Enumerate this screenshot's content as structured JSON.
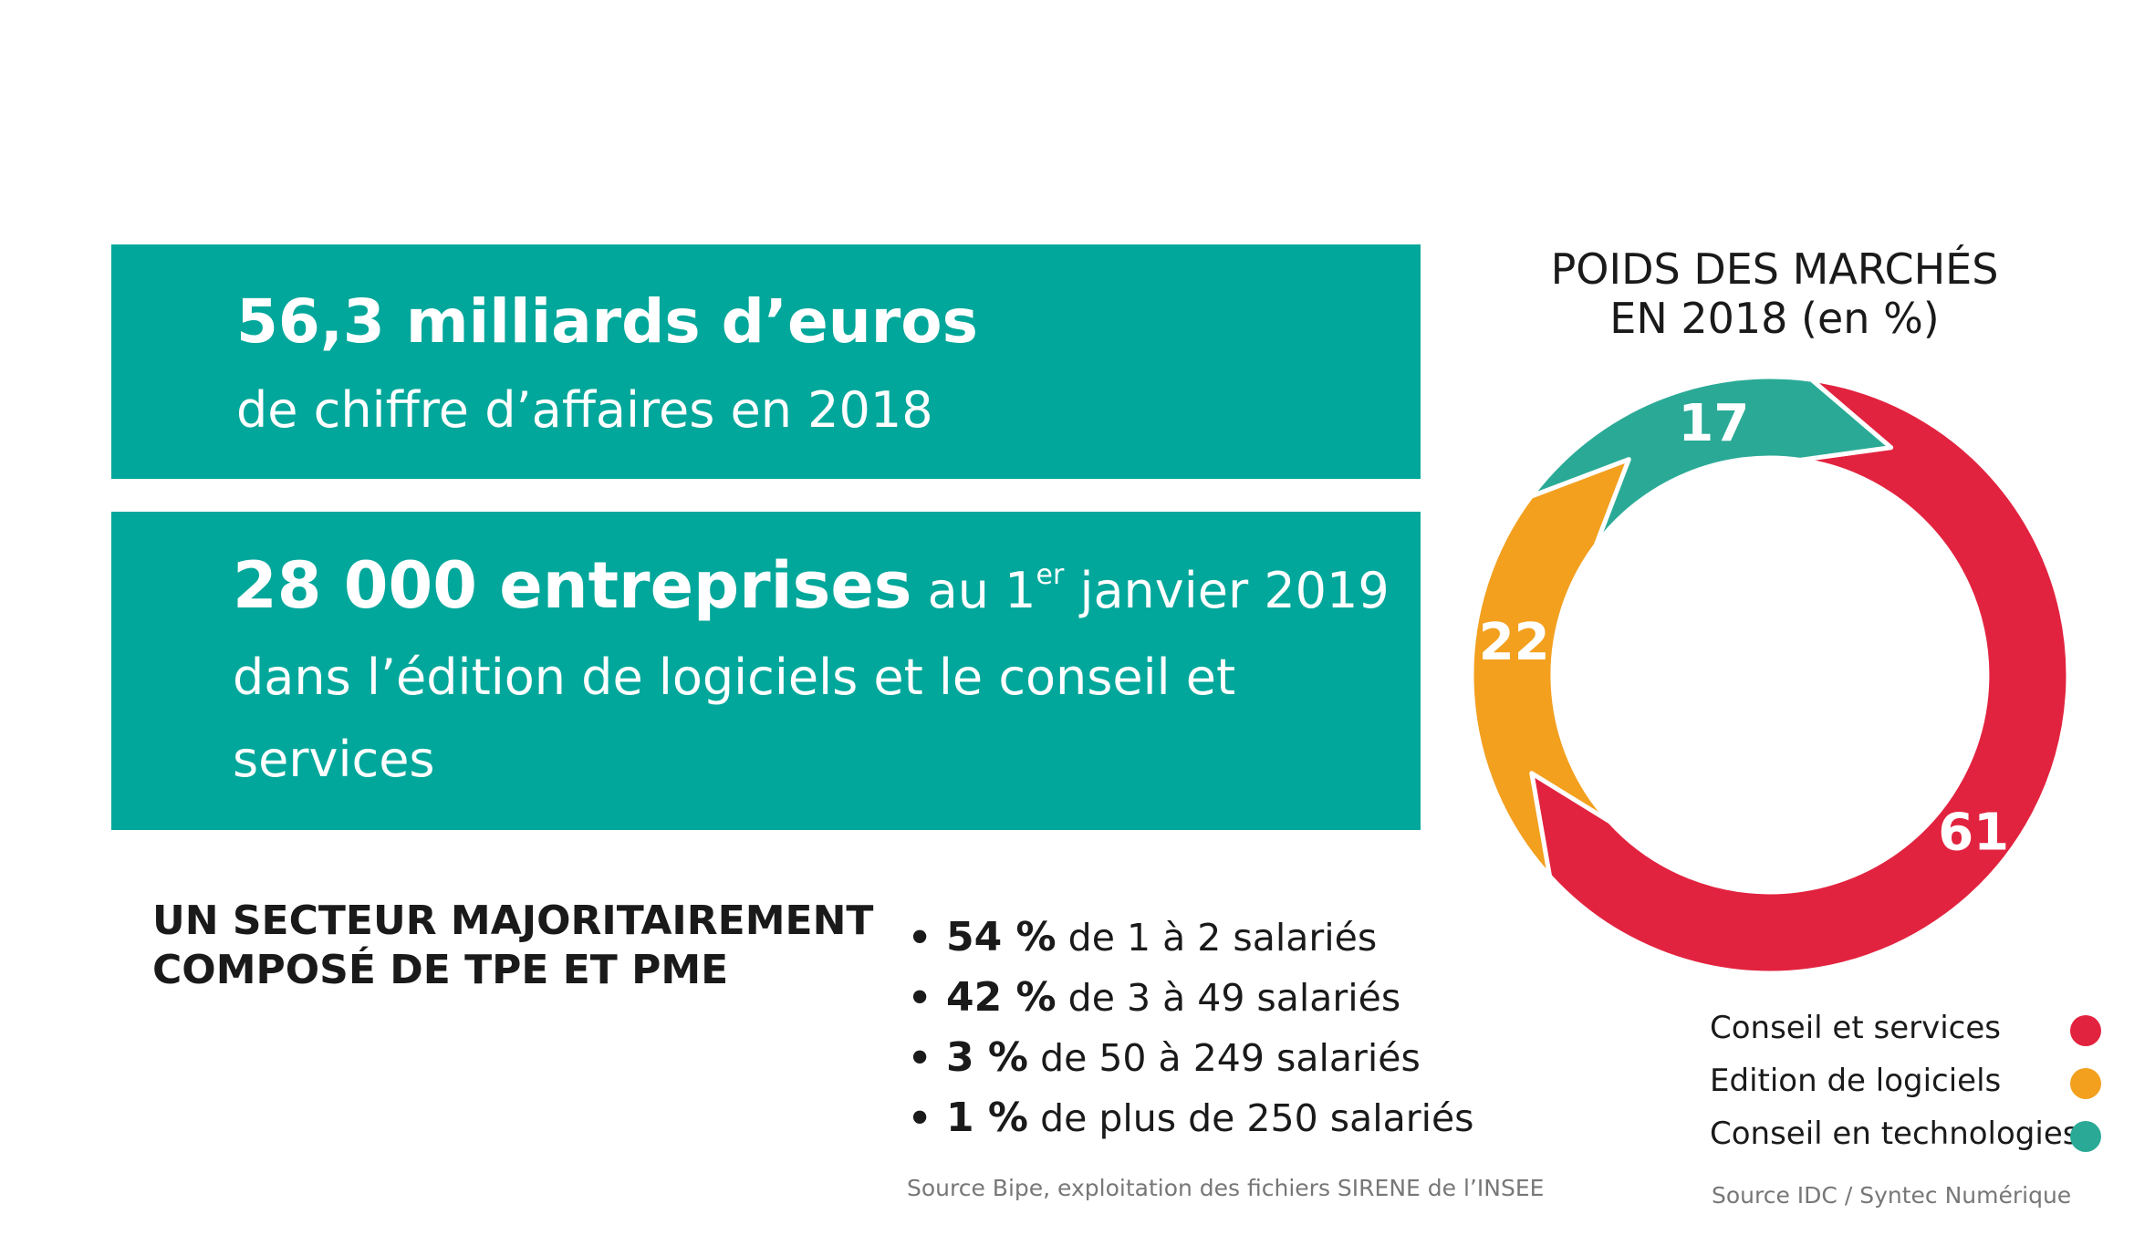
{
  "box1": {
    "headline": "56,3 milliards d’euros",
    "subline": "de chiffre d’affaires en 2018"
  },
  "box2": {
    "headline": "28 000 entreprises",
    "date_pre": " au 1",
    "date_sup": "er",
    "date_post": " janvier 2019",
    "line2": "dans l’édition de logiciels et le conseil et",
    "line3": "services"
  },
  "sector": {
    "title_line1": "UN SECTEUR MAJORITAIREMENT",
    "title_line2": "COMPOSÉ DE TPE ET PME",
    "bullet": "•",
    "items": [
      {
        "pct": "54 %",
        "text": " de 1 à 2 salariés"
      },
      {
        "pct": "42 %",
        "text": " de 3 à 49 salariés"
      },
      {
        "pct": "3 %",
        "text": " de 50 à 249 salariés"
      },
      {
        "pct": "1 %",
        "text": " de plus de 250 salariés"
      }
    ],
    "source": "Source Bipe, exploitation des fichiers SIRENE de l’INSEE"
  },
  "chart_data": {
    "type": "pie",
    "variant": "donut",
    "title_line1": "POIDS DES MARCHÉS",
    "title_line2": "EN 2018 (en %)",
    "categories": [
      "Conseil et services",
      "Edition de logiciels",
      "Conseil en technologies"
    ],
    "values": [
      61,
      22,
      17
    ],
    "data_labels": [
      "61",
      "22",
      "17"
    ],
    "colors": [
      "#e2233f",
      "#f3a01f",
      "#2aaa96"
    ],
    "legend_position": "bottom-right",
    "source": "Source IDC / Syntec Numérique"
  }
}
